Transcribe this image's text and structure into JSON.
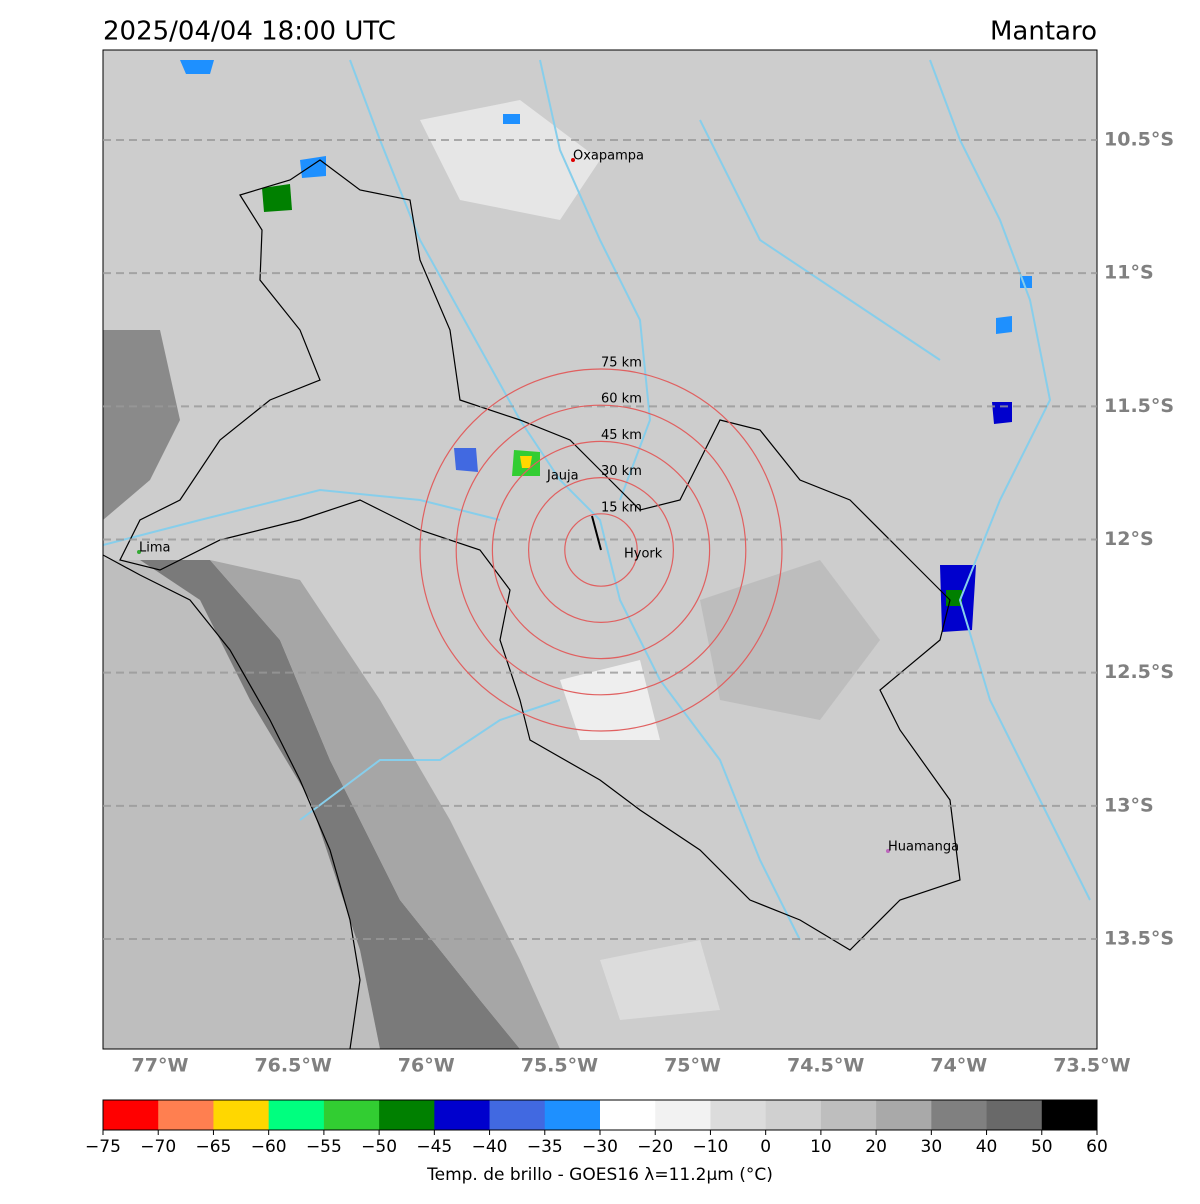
{
  "header": {
    "title": "2025/04/04 18:00 UTC",
    "region": "Mantaro"
  },
  "map": {
    "lonlim": [
      -77.214,
      -73.481
    ],
    "latlim": [
      -13.913,
      -10.162
    ],
    "grid": true,
    "lat_ticks": [
      {
        "value": -10.5,
        "label": "10.5°S"
      },
      {
        "value": -11,
        "label": "11°S"
      },
      {
        "value": -11.5,
        "label": "11.5°S"
      },
      {
        "value": -12,
        "label": "12°S"
      },
      {
        "value": -12.5,
        "label": "12.5°S"
      },
      {
        "value": -13,
        "label": "13°S"
      },
      {
        "value": -13.5,
        "label": "13.5°S"
      }
    ],
    "lon_ticks": [
      {
        "value": -77,
        "label": "77°W"
      },
      {
        "value": -76.5,
        "label": "76.5°W"
      },
      {
        "value": -76,
        "label": "76°W"
      },
      {
        "value": -75.5,
        "label": "75.5°W"
      },
      {
        "value": -75,
        "label": "75°W"
      },
      {
        "value": -74.5,
        "label": "74.5°W"
      },
      {
        "value": -74,
        "label": "74°W"
      },
      {
        "value": -73.5,
        "label": "73.5°W"
      }
    ],
    "rings": [
      "15 km",
      "30 km",
      "45 km",
      "60 km",
      "75 km"
    ],
    "places": [
      "Oxapampa",
      "Jauja",
      "Lima",
      "Hyork",
      "Huamanga"
    ]
  },
  "colorbar": {
    "ticks": [
      {
        "value": -75,
        "label": "−75"
      },
      {
        "value": -70,
        "label": "−70"
      },
      {
        "value": -65,
        "label": "−65"
      },
      {
        "value": -60,
        "label": "−60"
      },
      {
        "value": -55,
        "label": "−55"
      },
      {
        "value": -50,
        "label": "−50"
      },
      {
        "value": -45,
        "label": "−45"
      },
      {
        "value": -40,
        "label": "−40"
      },
      {
        "value": -35,
        "label": "−35"
      },
      {
        "value": -30,
        "label": "−30"
      },
      {
        "value": -20,
        "label": "−20"
      },
      {
        "value": -10,
        "label": "−10"
      },
      0,
      10,
      20,
      30,
      40,
      50,
      60
    ],
    "colors": [
      "#ff0000",
      "#ff7f50",
      "#ffd700",
      "#00ff7f",
      "#32cd32",
      "#008000",
      "#0000cd",
      "#4169e1",
      "#1e90ff",
      "#ffffff",
      "#f2f2f2",
      "#dcdcdc",
      "#d0d0d0",
      "#bebebe",
      "#a9a9a9",
      "#808080",
      "#696969",
      "#000000"
    ],
    "label": "Temp. de brillo - GOES16 λ=11.2μm (°C)"
  }
}
